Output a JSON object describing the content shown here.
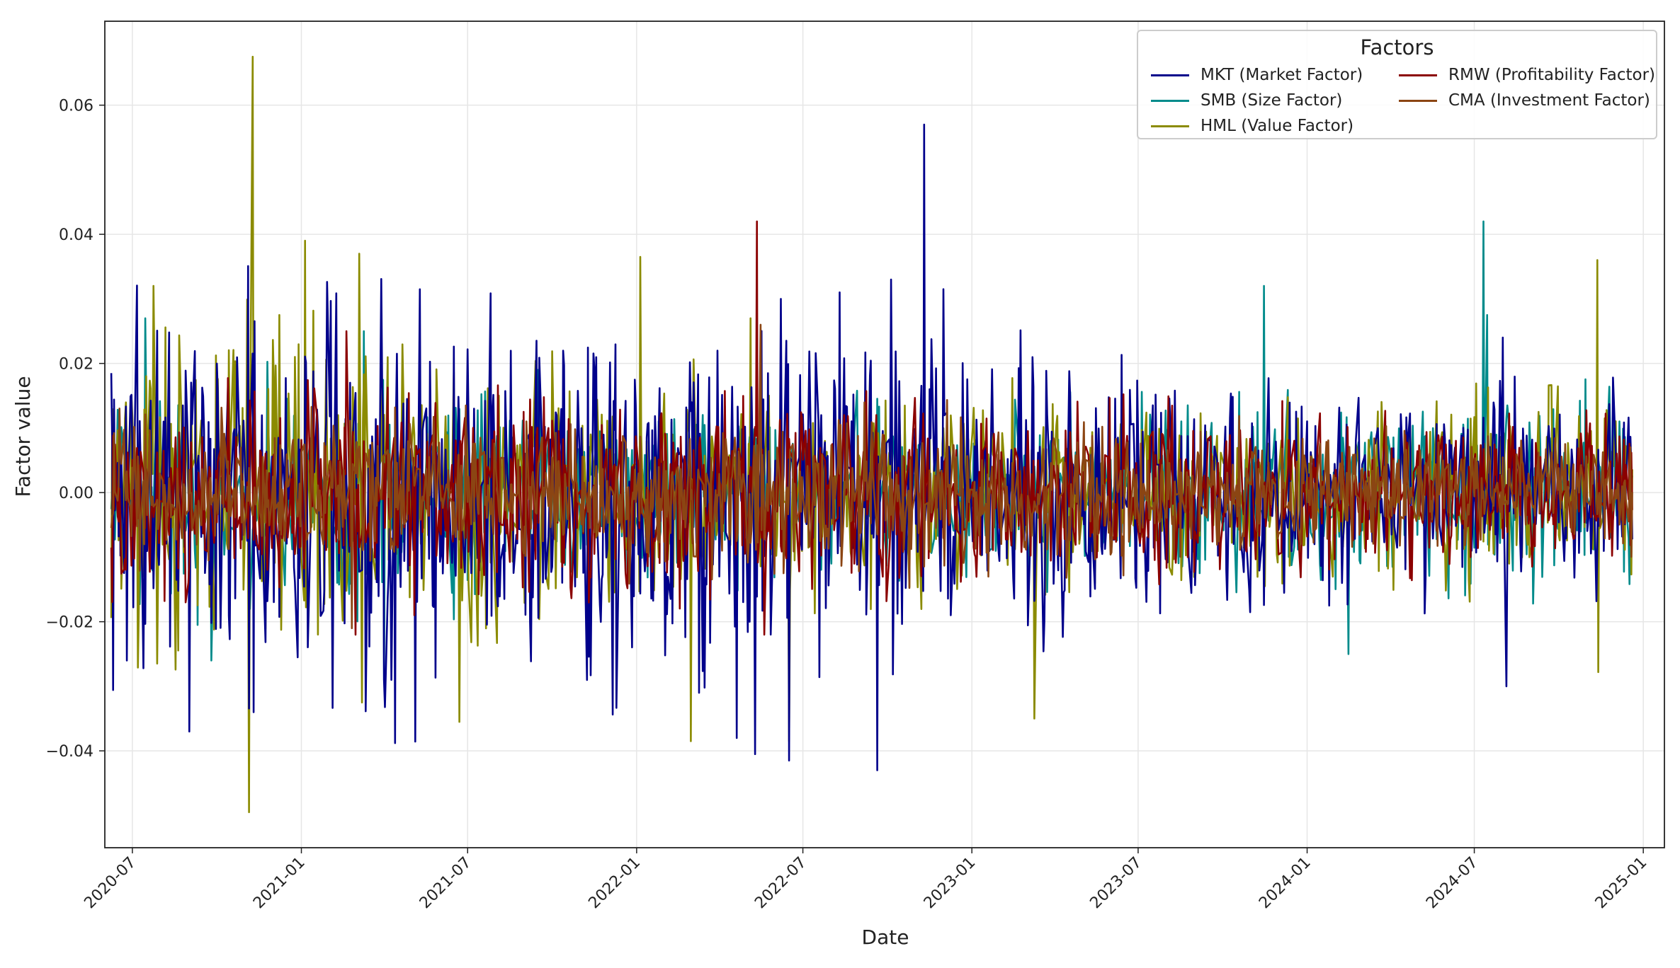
{
  "chart_data": {
    "type": "line",
    "title": "",
    "xlabel": "Date",
    "ylabel": "Factor value",
    "x_range": [
      "2020-06-01",
      "2025-01-24"
    ],
    "ylim": [
      -0.055,
      0.073
    ],
    "grid": true,
    "x_ticks": [
      "2020-07",
      "2021-01",
      "2021-07",
      "2022-01",
      "2022-07",
      "2023-01",
      "2023-07",
      "2024-01",
      "2024-07",
      "2025-01"
    ],
    "y_ticks": [
      "−0.04",
      "−0.02",
      "0.00",
      "0.02",
      "0.04",
      "0.06"
    ],
    "y_tick_values": [
      -0.04,
      -0.02,
      0.0,
      0.02,
      0.04,
      0.06
    ],
    "date_start": "2020-06-08",
    "date_end": "2024-12-20",
    "frequency": "business-daily",
    "legend": {
      "title": "Factors",
      "placement": "top-right",
      "columns": 2
    },
    "series": [
      {
        "name": "MKT (Market Factor)",
        "key": "mkt",
        "color": "#00008b",
        "volatility": [
          0.012,
          0.016,
          0.011,
          0.0075,
          0.0068
        ],
        "extremes": [
          [
            "2020-06-08",
            0.0185
          ],
          [
            "2020-06-25",
            -0.026
          ],
          [
            "2020-09-01",
            -0.037
          ],
          [
            "2020-11-10",
            -0.034
          ],
          [
            "2022-04-20",
            -0.038
          ],
          [
            "2022-05-10",
            -0.0405
          ],
          [
            "2022-06-16",
            -0.0415
          ],
          [
            "2022-09-20",
            -0.043
          ],
          [
            "2022-11-10",
            0.057
          ],
          [
            "2022-10-05",
            0.033
          ],
          [
            "2022-12-01",
            0.0315
          ],
          [
            "2022-08-10",
            0.031
          ],
          [
            "2024-08-05",
            -0.03
          ],
          [
            "2024-08-01",
            0.024
          ],
          [
            "2022-06-07",
            0.03
          ],
          [
            "2022-03-10",
            -0.031
          ],
          [
            "2021-04-10",
            -0.029
          ]
        ]
      },
      {
        "name": "SMB (Size Factor)",
        "key": "smb",
        "color": "#008b8b",
        "volatility": [
          0.008,
          0.0075,
          0.006,
          0.006,
          0.0075
        ],
        "extremes": [
          [
            "2020-07-15",
            0.027
          ],
          [
            "2023-11-15",
            0.032
          ],
          [
            "2024-02-15",
            -0.025
          ],
          [
            "2024-07-11",
            0.042
          ],
          [
            "2024-07-15",
            0.0275
          ],
          [
            "2021-04-01",
            -0.029
          ],
          [
            "2020-09-25",
            -0.026
          ],
          [
            "2021-03-10",
            0.025
          ]
        ]
      },
      {
        "name": "HML (Value Factor)",
        "key": "hml",
        "color": "#8b8b00",
        "volatility": [
          0.013,
          0.009,
          0.007,
          0.0065,
          0.0065
        ],
        "extremes": [
          [
            "2020-11-09",
            0.0675
          ],
          [
            "2020-11-05",
            -0.0495
          ],
          [
            "2021-01-05",
            0.039
          ],
          [
            "2021-03-05",
            0.037
          ],
          [
            "2021-03-05",
            -0.0325
          ],
          [
            "2021-06-22",
            -0.0355
          ],
          [
            "2020-12-08",
            0.0275
          ],
          [
            "2020-07-25",
            0.032
          ],
          [
            "2022-01-05",
            0.0365
          ],
          [
            "2022-03-01",
            -0.0385
          ],
          [
            "2022-06-16",
            -0.0385
          ],
          [
            "2023-03-10",
            -0.035
          ],
          [
            "2024-11-12",
            0.036
          ],
          [
            "2024-11-12",
            -0.0278
          ],
          [
            "2022-05-05",
            0.027
          ]
        ]
      },
      {
        "name": "RMW (Profitability Factor)",
        "key": "rmw",
        "color": "#8b0000",
        "volatility": [
          0.0065,
          0.0075,
          0.0065,
          0.0055,
          0.0048
        ],
        "extremes": [
          [
            "2022-05-12",
            0.042
          ],
          [
            "2022-05-20",
            -0.022
          ],
          [
            "2021-02-20",
            0.025
          ],
          [
            "2021-02-28",
            -0.022
          ]
        ]
      },
      {
        "name": "CMA (Investment Factor)",
        "key": "cma",
        "color": "#8b4513",
        "volatility": [
          0.005,
          0.0052,
          0.0058,
          0.0045,
          0.0038
        ],
        "extremes": [
          [
            "2022-05-15",
            0.026
          ],
          [
            "2021-02-25",
            -0.021
          ]
        ]
      }
    ]
  }
}
